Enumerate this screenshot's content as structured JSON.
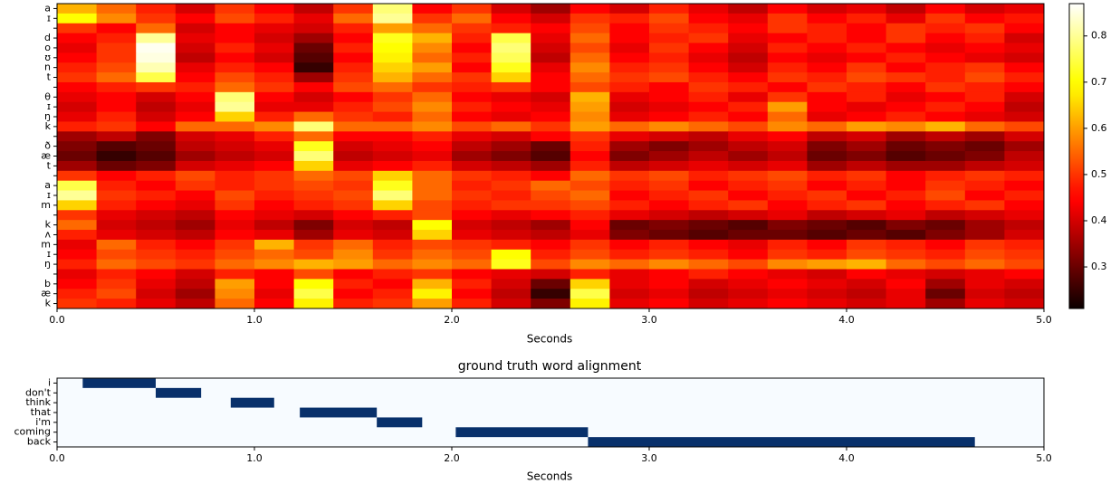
{
  "chart_data": [
    {
      "type": "heatmap",
      "xlabel": "Seconds",
      "rows": [
        "a",
        "ɪ",
        null,
        "d",
        "o",
        "ʊ",
        "n",
        "t",
        null,
        "θ",
        "ɪ",
        "ŋ",
        "k",
        null,
        "ð",
        "æ",
        "t",
        null,
        "a",
        "ɪ",
        "m",
        null,
        "k",
        "ʌ",
        "m",
        "ɪ",
        "ŋ",
        null,
        "b",
        "æ",
        "k"
      ],
      "x": [
        0,
        0.2,
        0.4,
        0.6,
        0.8,
        1,
        1.2,
        1.4,
        1.6,
        1.8,
        2,
        2.2,
        2.4,
        2.6,
        2.8,
        3,
        3.2,
        3.4,
        3.6,
        3.8,
        4,
        4.2,
        4.4,
        4.6,
        4.8
      ],
      "xlim": [
        0,
        5
      ],
      "xticks": [
        {
          "value": 0,
          "label": "0.0"
        },
        {
          "value": 1,
          "label": "1.0"
        },
        {
          "value": 2,
          "label": "2.0"
        },
        {
          "value": 3,
          "label": "3.0"
        },
        {
          "value": 4,
          "label": "4.0"
        },
        {
          "value": 5,
          "label": "5.0"
        }
      ],
      "colormap": "hot",
      "clim": [
        0.21,
        0.87
      ],
      "colorbar_ticks": [
        0.3,
        0.4,
        0.5,
        0.6,
        0.7,
        0.8
      ],
      "z": [
        [
          0.62,
          0.55,
          0.48,
          0.4,
          0.5,
          0.45,
          0.38,
          0.5,
          0.78,
          0.45,
          0.5,
          0.4,
          0.35,
          0.45,
          0.4,
          0.48,
          0.42,
          0.38,
          0.45,
          0.4,
          0.42,
          0.38,
          0.45,
          0.4,
          0.42
        ],
        [
          0.7,
          0.58,
          0.5,
          0.45,
          0.52,
          0.48,
          0.42,
          0.55,
          0.8,
          0.5,
          0.55,
          0.45,
          0.4,
          0.5,
          0.48,
          0.52,
          0.45,
          0.42,
          0.5,
          0.45,
          0.48,
          0.42,
          0.5,
          0.45,
          0.47
        ],
        [
          0.5,
          0.45,
          0.55,
          0.4,
          0.45,
          0.42,
          0.4,
          0.48,
          0.6,
          0.55,
          0.5,
          0.48,
          0.45,
          0.52,
          0.45,
          0.5,
          0.48,
          0.45,
          0.5,
          0.48,
          0.45,
          0.5,
          0.48,
          0.5,
          0.45
        ],
        [
          0.45,
          0.48,
          0.8,
          0.42,
          0.45,
          0.4,
          0.35,
          0.45,
          0.72,
          0.62,
          0.48,
          0.75,
          0.42,
          0.55,
          0.45,
          0.48,
          0.5,
          0.42,
          0.45,
          0.48,
          0.45,
          0.5,
          0.45,
          0.48,
          0.4
        ],
        [
          0.42,
          0.5,
          0.86,
          0.4,
          0.48,
          0.42,
          0.3,
          0.48,
          0.7,
          0.58,
          0.45,
          0.78,
          0.4,
          0.52,
          0.42,
          0.5,
          0.45,
          0.4,
          0.48,
          0.45,
          0.48,
          0.45,
          0.42,
          0.45,
          0.42
        ],
        [
          0.45,
          0.5,
          0.85,
          0.38,
          0.45,
          0.4,
          0.28,
          0.45,
          0.68,
          0.55,
          0.48,
          0.76,
          0.38,
          0.55,
          0.45,
          0.48,
          0.42,
          0.38,
          0.45,
          0.42,
          0.45,
          0.48,
          0.45,
          0.42,
          0.4
        ],
        [
          0.48,
          0.52,
          0.82,
          0.42,
          0.48,
          0.45,
          0.25,
          0.48,
          0.65,
          0.6,
          0.45,
          0.72,
          0.42,
          0.58,
          0.48,
          0.5,
          0.45,
          0.4,
          0.48,
          0.45,
          0.5,
          0.45,
          0.48,
          0.5,
          0.45
        ],
        [
          0.5,
          0.55,
          0.75,
          0.45,
          0.52,
          0.48,
          0.35,
          0.5,
          0.62,
          0.55,
          0.5,
          0.65,
          0.45,
          0.55,
          0.5,
          0.52,
          0.48,
          0.45,
          0.5,
          0.48,
          0.52,
          0.5,
          0.48,
          0.52,
          0.48
        ],
        [
          0.45,
          0.48,
          0.5,
          0.48,
          0.55,
          0.5,
          0.45,
          0.52,
          0.55,
          0.5,
          0.48,
          0.5,
          0.45,
          0.52,
          0.48,
          0.45,
          0.5,
          0.48,
          0.45,
          0.5,
          0.48,
          0.45,
          0.5,
          0.48,
          0.45
        ],
        [
          0.42,
          0.45,
          0.4,
          0.45,
          0.78,
          0.45,
          0.4,
          0.45,
          0.5,
          0.55,
          0.45,
          0.42,
          0.4,
          0.62,
          0.42,
          0.45,
          0.48,
          0.42,
          0.5,
          0.45,
          0.48,
          0.42,
          0.45,
          0.48,
          0.4
        ],
        [
          0.4,
          0.45,
          0.38,
          0.42,
          0.8,
          0.42,
          0.42,
          0.48,
          0.52,
          0.58,
          0.48,
          0.45,
          0.42,
          0.6,
          0.4,
          0.42,
          0.45,
          0.48,
          0.6,
          0.45,
          0.42,
          0.45,
          0.48,
          0.45,
          0.38
        ],
        [
          0.42,
          0.48,
          0.4,
          0.45,
          0.65,
          0.48,
          0.55,
          0.5,
          0.48,
          0.55,
          0.45,
          0.42,
          0.45,
          0.58,
          0.42,
          0.45,
          0.48,
          0.45,
          0.55,
          0.42,
          0.45,
          0.48,
          0.45,
          0.42,
          0.4
        ],
        [
          0.48,
          0.5,
          0.45,
          0.55,
          0.55,
          0.58,
          0.78,
          0.55,
          0.55,
          0.58,
          0.52,
          0.55,
          0.5,
          0.6,
          0.55,
          0.58,
          0.55,
          0.52,
          0.58,
          0.55,
          0.6,
          0.58,
          0.62,
          0.55,
          0.52
        ],
        [
          0.35,
          0.38,
          0.32,
          0.4,
          0.42,
          0.48,
          0.55,
          0.45,
          0.45,
          0.48,
          0.42,
          0.4,
          0.45,
          0.5,
          0.42,
          0.4,
          0.38,
          0.42,
          0.45,
          0.38,
          0.4,
          0.35,
          0.38,
          0.35,
          0.4
        ],
        [
          0.32,
          0.28,
          0.3,
          0.38,
          0.4,
          0.42,
          0.72,
          0.4,
          0.42,
          0.45,
          0.38,
          0.35,
          0.3,
          0.48,
          0.35,
          0.32,
          0.35,
          0.38,
          0.4,
          0.32,
          0.35,
          0.3,
          0.32,
          0.3,
          0.35
        ],
        [
          0.3,
          0.25,
          0.28,
          0.35,
          0.38,
          0.4,
          0.78,
          0.38,
          0.4,
          0.42,
          0.35,
          0.32,
          0.28,
          0.45,
          0.32,
          0.35,
          0.38,
          0.35,
          0.38,
          0.3,
          0.32,
          0.28,
          0.3,
          0.32,
          0.38
        ],
        [
          0.35,
          0.3,
          0.32,
          0.4,
          0.42,
          0.45,
          0.65,
          0.42,
          0.45,
          0.48,
          0.4,
          0.38,
          0.35,
          0.48,
          0.38,
          0.4,
          0.42,
          0.4,
          0.42,
          0.35,
          0.38,
          0.35,
          0.35,
          0.38,
          0.4
        ],
        [
          0.5,
          0.45,
          0.48,
          0.52,
          0.48,
          0.5,
          0.55,
          0.52,
          0.65,
          0.55,
          0.5,
          0.48,
          0.45,
          0.55,
          0.5,
          0.52,
          0.48,
          0.5,
          0.52,
          0.48,
          0.5,
          0.45,
          0.48,
          0.5,
          0.48
        ],
        [
          0.75,
          0.48,
          0.45,
          0.5,
          0.48,
          0.5,
          0.52,
          0.5,
          0.72,
          0.55,
          0.48,
          0.5,
          0.55,
          0.52,
          0.48,
          0.5,
          0.45,
          0.48,
          0.5,
          0.45,
          0.48,
          0.45,
          0.5,
          0.48,
          0.45
        ],
        [
          0.8,
          0.5,
          0.48,
          0.45,
          0.52,
          0.48,
          0.5,
          0.52,
          0.78,
          0.55,
          0.5,
          0.48,
          0.52,
          0.55,
          0.45,
          0.48,
          0.5,
          0.45,
          0.48,
          0.5,
          0.45,
          0.48,
          0.52,
          0.45,
          0.48
        ],
        [
          0.65,
          0.48,
          0.45,
          0.42,
          0.5,
          0.45,
          0.48,
          0.5,
          0.65,
          0.52,
          0.48,
          0.5,
          0.5,
          0.52,
          0.48,
          0.45,
          0.48,
          0.5,
          0.45,
          0.48,
          0.5,
          0.45,
          0.48,
          0.5,
          0.45
        ],
        [
          0.5,
          0.42,
          0.4,
          0.38,
          0.45,
          0.42,
          0.4,
          0.45,
          0.48,
          0.52,
          0.45,
          0.42,
          0.45,
          0.48,
          0.42,
          0.4,
          0.38,
          0.4,
          0.42,
          0.38,
          0.4,
          0.42,
          0.38,
          0.4,
          0.42
        ],
        [
          0.55,
          0.4,
          0.38,
          0.35,
          0.42,
          0.38,
          0.32,
          0.4,
          0.38,
          0.7,
          0.4,
          0.38,
          0.35,
          0.45,
          0.3,
          0.32,
          0.3,
          0.28,
          0.32,
          0.3,
          0.28,
          0.32,
          0.3,
          0.35,
          0.38
        ],
        [
          0.48,
          0.42,
          0.4,
          0.38,
          0.45,
          0.42,
          0.35,
          0.42,
          0.4,
          0.65,
          0.42,
          0.4,
          0.38,
          0.42,
          0.32,
          0.3,
          0.28,
          0.3,
          0.3,
          0.28,
          0.3,
          0.28,
          0.32,
          0.35,
          0.4
        ],
        [
          0.42,
          0.55,
          0.48,
          0.45,
          0.5,
          0.62,
          0.5,
          0.55,
          0.48,
          0.52,
          0.5,
          0.48,
          0.45,
          0.5,
          0.45,
          0.48,
          0.45,
          0.42,
          0.48,
          0.45,
          0.5,
          0.48,
          0.45,
          0.5,
          0.48
        ],
        [
          0.45,
          0.52,
          0.5,
          0.48,
          0.52,
          0.55,
          0.52,
          0.58,
          0.5,
          0.55,
          0.52,
          0.7,
          0.48,
          0.52,
          0.48,
          0.5,
          0.48,
          0.45,
          0.5,
          0.48,
          0.52,
          0.5,
          0.48,
          0.52,
          0.5
        ],
        [
          0.48,
          0.55,
          0.52,
          0.5,
          0.55,
          0.58,
          0.62,
          0.6,
          0.55,
          0.58,
          0.55,
          0.72,
          0.52,
          0.58,
          0.55,
          0.58,
          0.55,
          0.52,
          0.58,
          0.6,
          0.62,
          0.55,
          0.52,
          0.55,
          0.52
        ],
        [
          0.42,
          0.48,
          0.45,
          0.4,
          0.48,
          0.45,
          0.52,
          0.45,
          0.48,
          0.5,
          0.45,
          0.42,
          0.4,
          0.48,
          0.42,
          0.45,
          0.48,
          0.45,
          0.42,
          0.4,
          0.45,
          0.42,
          0.4,
          0.42,
          0.45
        ],
        [
          0.45,
          0.5,
          0.42,
          0.38,
          0.6,
          0.45,
          0.7,
          0.48,
          0.45,
          0.62,
          0.48,
          0.4,
          0.3,
          0.65,
          0.42,
          0.45,
          0.4,
          0.42,
          0.45,
          0.42,
          0.4,
          0.45,
          0.35,
          0.42,
          0.4
        ],
        [
          0.48,
          0.52,
          0.4,
          0.35,
          0.58,
          0.42,
          0.75,
          0.45,
          0.48,
          0.68,
          0.45,
          0.38,
          0.25,
          0.75,
          0.4,
          0.42,
          0.38,
          0.4,
          0.42,
          0.4,
          0.38,
          0.42,
          0.3,
          0.4,
          0.38
        ],
        [
          0.5,
          0.48,
          0.42,
          0.38,
          0.55,
          0.45,
          0.68,
          0.48,
          0.5,
          0.6,
          0.48,
          0.4,
          0.32,
          0.68,
          0.42,
          0.45,
          0.4,
          0.42,
          0.45,
          0.42,
          0.4,
          0.42,
          0.35,
          0.42,
          0.4
        ]
      ]
    },
    {
      "type": "gantt",
      "title": "ground truth word alignment",
      "xlabel": "Seconds",
      "categories": [
        "i",
        "don't",
        "think",
        "that",
        "i'm",
        "coming",
        "back"
      ],
      "starts": [
        0.13,
        0.5,
        0.88,
        1.23,
        1.62,
        2.02,
        2.69
      ],
      "ends": [
        0.5,
        0.73,
        1.1,
        1.62,
        1.85,
        2.69,
        4.65
      ],
      "color": "#08306b",
      "background": "#f7fbff",
      "xlim": [
        0,
        5
      ],
      "xticks": [
        {
          "value": 0,
          "label": "0.0"
        },
        {
          "value": 1,
          "label": "1.0"
        },
        {
          "value": 2,
          "label": "2.0"
        },
        {
          "value": 3,
          "label": "3.0"
        },
        {
          "value": 4,
          "label": "4.0"
        },
        {
          "value": 5,
          "label": "5.0"
        }
      ]
    }
  ]
}
